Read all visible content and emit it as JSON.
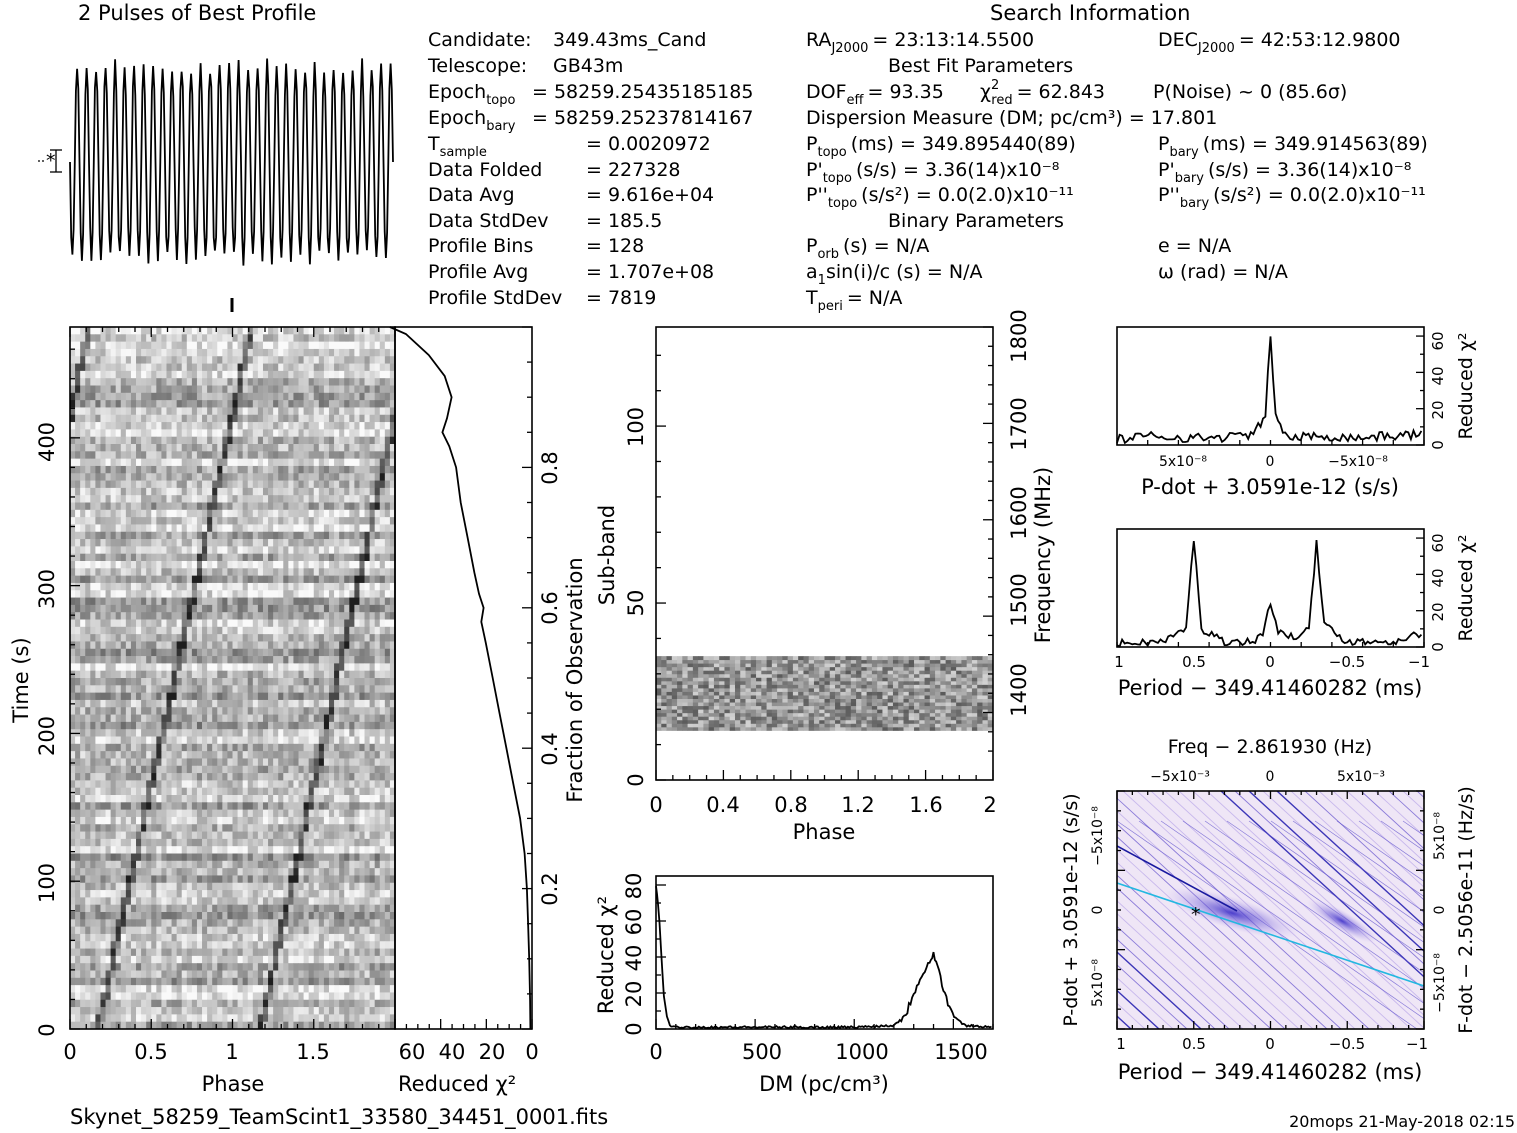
{
  "header": {
    "profile_title": "2 Pulses of Best Profile",
    "search_title": "Search Information",
    "best_fit_title": "Best Fit Parameters",
    "binary_title": "Binary Parameters",
    "footer_file": "Skynet_58259_TeamScint1_33580_34451_0001.fits",
    "footer_stamp": "20mops 21-May-2018 02:15"
  },
  "info_left": [
    {
      "label": "Candidate:",
      "value": "349.43ms_Cand"
    },
    {
      "label": "Telescope:",
      "value": "GB43m"
    },
    {
      "label": "Epoch",
      "sub": "topo",
      "value": "= 58259.25435185185"
    },
    {
      "label": "Epoch",
      "sub": "bary",
      "value": "= 58259.25237814167"
    },
    {
      "label": "T",
      "sub": "sample",
      "value": "=   0.0020972"
    },
    {
      "label": "Data Folded",
      "value": "=   227328"
    },
    {
      "label": "Data Avg",
      "value": "=   9.616e+04"
    },
    {
      "label": "Data StdDev",
      "value": "=   185.5"
    },
    {
      "label": "Profile Bins",
      "value": "=   128"
    },
    {
      "label": "Profile Avg",
      "value": "=   1.707e+08"
    },
    {
      "label": "Profile StdDev",
      "value": "=   7819"
    }
  ],
  "info_mid": {
    "ra": "RA",
    "ra_sub": "J2000",
    "ra_val": "= 23:13:14.5500",
    "dof": "DOF",
    "dof_sub": "eff",
    "dof_val": "= 93.35",
    "chi": "χ",
    "chi_sub": "red",
    "chi_val": "= 62.843",
    "dm_line": "Dispersion Measure (DM; pc/cm³) = 17.801",
    "ptopo": "P",
    "ptopo_sub": "topo",
    "ptopo_val": "(ms) =  349.895440(89)",
    "pdtopo": "P'",
    "pdtopo_sub": "topo",
    "pdtopo_val": "(s/s) =  3.36(14)x10⁻⁸",
    "pddtopo": "P''",
    "pddtopo_sub": "topo",
    "pddtopo_val": "(s/s²) = 0.0(2.0)x10⁻¹¹",
    "porb": "P",
    "porb_sub": "orb",
    "porb_val": "(s) = N/A",
    "a1": "a",
    "a1_sub": "1",
    "a1_val": "sin(i)/c (s) = N/A",
    "tperi": "T",
    "tperi_sub": "peri",
    "tperi_val": "= N/A"
  },
  "info_right": {
    "dec": "DEC",
    "dec_sub": "J2000",
    "dec_val": "= 42:53:12.9800",
    "pnoise": "P(Noise) ~ 0    (85.6σ)",
    "pbary": "P",
    "pbary_sub": "bary",
    "pbary_val": "(ms) =  349.914563(89)",
    "pdbary": "P'",
    "pdbary_sub": "bary",
    "pdbary_val": "(s/s) =  3.36(14)x10⁻⁸",
    "pddbary": "P''",
    "pddbary_sub": "bary",
    "pddbary_val": "(s/s²) = 0.0(2.0)x10⁻¹¹",
    "ecc": "e = N/A",
    "omega": "ω (rad) = N/A"
  },
  "chart_data": [
    {
      "type": "line",
      "id": "pulse-profile",
      "title": "2 Pulses of Best Profile",
      "x_range": [
        0,
        2
      ],
      "cycles": 34,
      "note_symbol": "*"
    },
    {
      "type": "heatmap",
      "id": "time-phase",
      "xlabel": "Phase",
      "ylabel": "Time (s)",
      "xlim": [
        0,
        2
      ],
      "ylim": [
        0,
        475
      ],
      "x_ticks": [
        "0",
        "0.5",
        "1",
        "1.5"
      ],
      "y_ticks": [
        "0",
        "100",
        "200",
        "300",
        "400"
      ],
      "colors": {
        "dark": "#2b2b2b",
        "light": "#f2f2f2"
      }
    },
    {
      "type": "line",
      "id": "time-chi",
      "xlabel": "Reduced χ²",
      "ylabel": "Fraction of Observation",
      "xlim": [
        60,
        0
      ],
      "ylim": [
        0,
        1
      ],
      "x_ticks": [
        "60",
        "40",
        "20",
        "0"
      ],
      "y_ticks": [
        "0.2",
        "0.4",
        "0.6",
        "0.8"
      ],
      "points": [
        [
          0.5,
          0.0
        ],
        [
          0.6,
          0.04
        ],
        [
          1.0,
          0.1
        ],
        [
          1.5,
          0.15
        ],
        [
          2.0,
          0.2
        ],
        [
          3.0,
          0.25
        ],
        [
          5.0,
          0.3
        ],
        [
          8.0,
          0.35
        ],
        [
          11.0,
          0.4
        ],
        [
          14.0,
          0.45
        ],
        [
          17.0,
          0.5
        ],
        [
          20.0,
          0.55
        ],
        [
          22.0,
          0.58
        ],
        [
          21.0,
          0.6
        ],
        [
          23.0,
          0.62
        ],
        [
          25.0,
          0.65
        ],
        [
          28.0,
          0.7
        ],
        [
          31.0,
          0.75
        ],
        [
          33.0,
          0.8
        ],
        [
          36.0,
          0.83
        ],
        [
          39.0,
          0.85
        ],
        [
          37.0,
          0.87
        ],
        [
          35.0,
          0.9
        ],
        [
          38.0,
          0.93
        ],
        [
          45.0,
          0.96
        ],
        [
          55.0,
          0.99
        ],
        [
          62.0,
          1.0
        ]
      ]
    },
    {
      "type": "heatmap",
      "id": "subband-phase",
      "xlabel": "Phase",
      "ylabel": "Sub-band",
      "ylabel2": "Frequency (MHz)",
      "xlim": [
        0,
        2
      ],
      "ylim": [
        0,
        128
      ],
      "x_ticks": [
        "0",
        "0.4",
        "0.8",
        "1.2",
        "1.6",
        "2"
      ],
      "y_ticks": [
        "0",
        "50",
        "100"
      ],
      "y2_ticks": [
        "1400",
        "1500",
        "1600",
        "1700",
        "1800"
      ],
      "band": [
        14,
        35
      ]
    },
    {
      "type": "line",
      "id": "dm-chi",
      "xlabel": "DM (pc/cm³)",
      "ylabel": "Reduced χ²",
      "xlim": [
        0,
        1700
      ],
      "ylim": [
        0,
        85
      ],
      "x_ticks": [
        "0",
        "500",
        "1000",
        "1500"
      ],
      "y_ticks": [
        "0",
        "20",
        "40",
        "60",
        "80"
      ],
      "points": [
        [
          0,
          80
        ],
        [
          10,
          70
        ],
        [
          25,
          45
        ],
        [
          40,
          20
        ],
        [
          55,
          6
        ],
        [
          70,
          2
        ],
        [
          90,
          1
        ],
        [
          200,
          1
        ],
        [
          600,
          1
        ],
        [
          1000,
          1
        ],
        [
          1200,
          2
        ],
        [
          1260,
          8
        ],
        [
          1300,
          20
        ],
        [
          1340,
          30
        ],
        [
          1380,
          38
        ],
        [
          1400,
          42
        ],
        [
          1420,
          35
        ],
        [
          1450,
          22
        ],
        [
          1480,
          12
        ],
        [
          1520,
          5
        ],
        [
          1560,
          2
        ],
        [
          1700,
          1
        ]
      ]
    },
    {
      "type": "line",
      "id": "pdot-chi",
      "xlabel": "P-dot + 3.0591e-12 (s/s)",
      "ylabel": "Reduced χ²",
      "xlim": [
        9e-08,
        -9e-08
      ],
      "ylim": [
        0,
        65
      ],
      "x_ticks": [
        "5x10⁻⁸",
        "0",
        "−5x10⁻⁸"
      ],
      "y_ticks": [
        "0",
        "20",
        "40",
        "60"
      ],
      "points": [
        [
          9e-08,
          3
        ],
        [
          7e-08,
          5
        ],
        [
          5e-08,
          4
        ],
        [
          3e-08,
          4
        ],
        [
          1e-08,
          6
        ],
        [
          3e-09,
          15
        ],
        [
          0,
          62
        ],
        [
          -3e-09,
          15
        ],
        [
          -1e-08,
          4
        ],
        [
          -3e-08,
          5
        ],
        [
          -5e-08,
          4
        ],
        [
          -7e-08,
          5
        ],
        [
          -9e-08,
          6
        ]
      ]
    },
    {
      "type": "line",
      "id": "period-chi",
      "xlabel": "Period − 349.41460282 (ms)",
      "ylabel": "Reduced χ²",
      "xlim": [
        1,
        -1
      ],
      "ylim": [
        0,
        65
      ],
      "x_ticks": [
        "1",
        "0.5",
        "0",
        "−0.5",
        "−1"
      ],
      "y_ticks": [
        "0",
        "20",
        "40",
        "60"
      ],
      "points": [
        [
          1,
          2
        ],
        [
          0.7,
          3
        ],
        [
          0.55,
          10
        ],
        [
          0.5,
          60
        ],
        [
          0.45,
          10
        ],
        [
          0.3,
          3
        ],
        [
          0.1,
          3
        ],
        [
          0.05,
          8
        ],
        [
          0,
          25
        ],
        [
          -0.05,
          8
        ],
        [
          -0.15,
          5
        ],
        [
          -0.25,
          12
        ],
        [
          -0.3,
          57
        ],
        [
          -0.35,
          12
        ],
        [
          -0.5,
          3
        ],
        [
          -0.8,
          3
        ],
        [
          -1,
          8
        ]
      ]
    },
    {
      "type": "heatmap",
      "id": "p-pdot",
      "title": "Freq − 2.861930 (Hz)",
      "xlabel": "Period − 349.41460282 (ms)",
      "ylabel": "P-dot + 3.0591e-12 (s/s)",
      "ylabel2": "F-dot − 2.5056e-11 (Hz/s)",
      "x_ticks": [
        "1",
        "0.5",
        "0",
        "−0.5",
        "−1"
      ],
      "top_ticks": [
        "−5x10⁻³",
        "0",
        "5x10⁻³"
      ],
      "left_ticks": [
        "−5x10⁻⁸",
        "0",
        "5x10⁻⁸"
      ],
      "right_ticks": [
        "5x10⁻⁸",
        "0",
        "−5x10⁻⁸"
      ],
      "best_marker": "*",
      "colors": {
        "low": "#f0e8f6",
        "high": "#1a1aa0",
        "peak": "#22b8e0"
      }
    }
  ]
}
